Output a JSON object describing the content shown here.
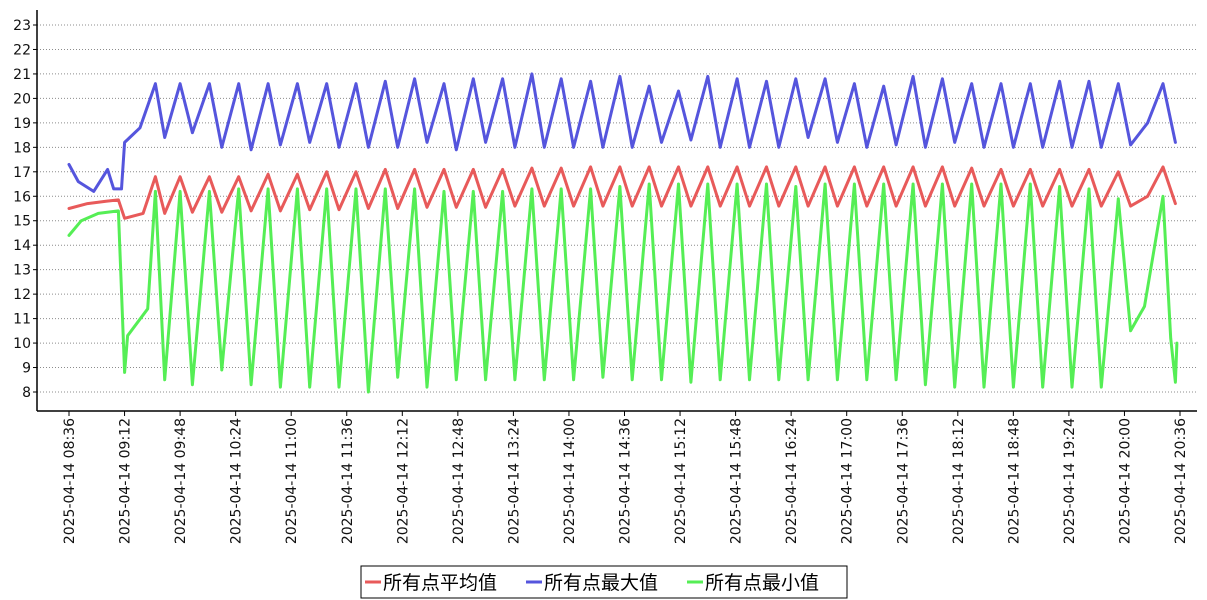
{
  "chart_data": {
    "type": "line",
    "title": "",
    "xlabel": "",
    "ylabel": "",
    "ylim": [
      7.2,
      23.6
    ],
    "yticks": [
      8,
      9,
      10,
      11,
      12,
      13,
      14,
      15,
      16,
      17,
      18,
      19,
      20,
      21,
      22,
      23
    ],
    "grid": "horizontal-dotted",
    "legend_position": "bottom-center",
    "x_tick_labels": [
      "2025-04-14 08:36",
      "2025-04-14 09:12",
      "2025-04-14 09:48",
      "2025-04-14 10:24",
      "2025-04-14 11:00",
      "2025-04-14 11:36",
      "2025-04-14 12:12",
      "2025-04-14 12:48",
      "2025-04-14 13:24",
      "2025-04-14 14:00",
      "2025-04-14 14:36",
      "2025-04-14 15:12",
      "2025-04-14 15:48",
      "2025-04-14 16:24",
      "2025-04-14 17:00",
      "2025-04-14 17:36",
      "2025-04-14 18:12",
      "2025-04-14 18:48",
      "2025-04-14 19:24",
      "2025-04-14 20:00",
      "2025-04-14 20:36"
    ],
    "x_range": [
      "2025-04-14 08:36",
      "2025-04-14 20:36"
    ],
    "series": [
      {
        "name": "所有点平均值",
        "color": "#e85a5a",
        "points": [
          [
            "2025-04-14 08:36",
            15.5
          ],
          [
            "2025-04-14 08:48",
            15.7
          ],
          [
            "2025-04-14 09:00",
            15.8
          ],
          [
            "2025-04-14 09:08",
            15.85
          ],
          [
            "2025-04-14 09:12",
            15.1
          ],
          [
            "2025-04-14 09:24",
            15.3
          ],
          [
            "2025-04-14 09:32",
            16.8
          ],
          [
            "2025-04-14 09:38",
            15.3
          ],
          [
            "2025-04-14 09:48",
            16.8
          ],
          [
            "2025-04-14 09:56",
            15.35
          ],
          [
            "2025-04-14 10:07",
            16.8
          ],
          [
            "2025-04-14 10:15",
            15.35
          ],
          [
            "2025-04-14 10:26",
            16.8
          ],
          [
            "2025-04-14 10:34",
            15.4
          ],
          [
            "2025-04-14 10:45",
            16.9
          ],
          [
            "2025-04-14 10:53",
            15.4
          ],
          [
            "2025-04-14 11:04",
            16.9
          ],
          [
            "2025-04-14 11:12",
            15.45
          ],
          [
            "2025-04-14 11:23",
            17.0
          ],
          [
            "2025-04-14 11:31",
            15.45
          ],
          [
            "2025-04-14 11:42",
            17.0
          ],
          [
            "2025-04-14 11:50",
            15.5
          ],
          [
            "2025-04-14 12:01",
            17.1
          ],
          [
            "2025-04-14 12:09",
            15.5
          ],
          [
            "2025-04-14 12:20",
            17.1
          ],
          [
            "2025-04-14 12:28",
            15.55
          ],
          [
            "2025-04-14 12:39",
            17.1
          ],
          [
            "2025-04-14 12:47",
            15.55
          ],
          [
            "2025-04-14 12:58",
            17.1
          ],
          [
            "2025-04-14 13:06",
            15.55
          ],
          [
            "2025-04-14 13:17",
            17.1
          ],
          [
            "2025-04-14 13:25",
            15.6
          ],
          [
            "2025-04-14 13:36",
            17.15
          ],
          [
            "2025-04-14 13:44",
            15.6
          ],
          [
            "2025-04-14 13:55",
            17.15
          ],
          [
            "2025-04-14 14:03",
            15.6
          ],
          [
            "2025-04-14 14:14",
            17.2
          ],
          [
            "2025-04-14 14:22",
            15.6
          ],
          [
            "2025-04-14 14:33",
            17.2
          ],
          [
            "2025-04-14 14:41",
            15.6
          ],
          [
            "2025-04-14 14:52",
            17.2
          ],
          [
            "2025-04-14 15:00",
            15.6
          ],
          [
            "2025-04-14 15:11",
            17.2
          ],
          [
            "2025-04-14 15:19",
            15.6
          ],
          [
            "2025-04-14 15:30",
            17.2
          ],
          [
            "2025-04-14 15:38",
            15.6
          ],
          [
            "2025-04-14 15:49",
            17.2
          ],
          [
            "2025-04-14 15:57",
            15.6
          ],
          [
            "2025-04-14 16:08",
            17.2
          ],
          [
            "2025-04-14 16:16",
            15.6
          ],
          [
            "2025-04-14 16:27",
            17.2
          ],
          [
            "2025-04-14 16:35",
            15.6
          ],
          [
            "2025-04-14 16:46",
            17.2
          ],
          [
            "2025-04-14 16:54",
            15.6
          ],
          [
            "2025-04-14 17:05",
            17.2
          ],
          [
            "2025-04-14 17:13",
            15.6
          ],
          [
            "2025-04-14 17:24",
            17.2
          ],
          [
            "2025-04-14 17:32",
            15.6
          ],
          [
            "2025-04-14 17:43",
            17.2
          ],
          [
            "2025-04-14 17:51",
            15.6
          ],
          [
            "2025-04-14 18:02",
            17.2
          ],
          [
            "2025-04-14 18:10",
            15.6
          ],
          [
            "2025-04-14 18:21",
            17.15
          ],
          [
            "2025-04-14 18:29",
            15.6
          ],
          [
            "2025-04-14 18:40",
            17.1
          ],
          [
            "2025-04-14 18:48",
            15.6
          ],
          [
            "2025-04-14 18:59",
            17.1
          ],
          [
            "2025-04-14 19:07",
            15.6
          ],
          [
            "2025-04-14 19:18",
            17.1
          ],
          [
            "2025-04-14 19:26",
            15.6
          ],
          [
            "2025-04-14 19:37",
            17.1
          ],
          [
            "2025-04-14 19:45",
            15.6
          ],
          [
            "2025-04-14 19:56",
            17.0
          ],
          [
            "2025-04-14 20:04",
            15.6
          ],
          [
            "2025-04-14 20:15",
            16.0
          ],
          [
            "2025-04-14 20:25",
            17.2
          ],
          [
            "2025-04-14 20:33",
            15.7
          ]
        ]
      },
      {
        "name": "所有点最大值",
        "color": "#5555dd",
        "points": [
          [
            "2025-04-14 08:36",
            17.3
          ],
          [
            "2025-04-14 08:42",
            16.6
          ],
          [
            "2025-04-14 08:52",
            16.2
          ],
          [
            "2025-04-14 09:01",
            17.1
          ],
          [
            "2025-04-14 09:05",
            16.3
          ],
          [
            "2025-04-14 09:10",
            16.3
          ],
          [
            "2025-04-14 09:12",
            18.2
          ],
          [
            "2025-04-14 09:22",
            18.8
          ],
          [
            "2025-04-14 09:32",
            20.6
          ],
          [
            "2025-04-14 09:38",
            18.4
          ],
          [
            "2025-04-14 09:48",
            20.6
          ],
          [
            "2025-04-14 09:56",
            18.6
          ],
          [
            "2025-04-14 10:07",
            20.6
          ],
          [
            "2025-04-14 10:15",
            18.0
          ],
          [
            "2025-04-14 10:26",
            20.6
          ],
          [
            "2025-04-14 10:34",
            17.9
          ],
          [
            "2025-04-14 10:45",
            20.6
          ],
          [
            "2025-04-14 10:53",
            18.1
          ],
          [
            "2025-04-14 11:04",
            20.6
          ],
          [
            "2025-04-14 11:12",
            18.2
          ],
          [
            "2025-04-14 11:23",
            20.6
          ],
          [
            "2025-04-14 11:31",
            18.0
          ],
          [
            "2025-04-14 11:42",
            20.6
          ],
          [
            "2025-04-14 11:50",
            18.0
          ],
          [
            "2025-04-14 12:01",
            20.7
          ],
          [
            "2025-04-14 12:09",
            18.0
          ],
          [
            "2025-04-14 12:20",
            20.8
          ],
          [
            "2025-04-14 12:28",
            18.2
          ],
          [
            "2025-04-14 12:39",
            20.6
          ],
          [
            "2025-04-14 12:47",
            17.9
          ],
          [
            "2025-04-14 12:58",
            20.8
          ],
          [
            "2025-04-14 13:06",
            18.2
          ],
          [
            "2025-04-14 13:17",
            20.8
          ],
          [
            "2025-04-14 13:25",
            18.0
          ],
          [
            "2025-04-14 13:36",
            21.0
          ],
          [
            "2025-04-14 13:44",
            18.0
          ],
          [
            "2025-04-14 13:55",
            20.8
          ],
          [
            "2025-04-14 14:03",
            18.0
          ],
          [
            "2025-04-14 14:14",
            20.7
          ],
          [
            "2025-04-14 14:22",
            18.0
          ],
          [
            "2025-04-14 14:33",
            20.9
          ],
          [
            "2025-04-14 14:41",
            18.0
          ],
          [
            "2025-04-14 14:52",
            20.5
          ],
          [
            "2025-04-14 15:00",
            18.2
          ],
          [
            "2025-04-14 15:11",
            20.3
          ],
          [
            "2025-04-14 15:19",
            18.3
          ],
          [
            "2025-04-14 15:30",
            20.9
          ],
          [
            "2025-04-14 15:38",
            18.0
          ],
          [
            "2025-04-14 15:49",
            20.8
          ],
          [
            "2025-04-14 15:57",
            18.0
          ],
          [
            "2025-04-14 16:08",
            20.7
          ],
          [
            "2025-04-14 16:16",
            18.0
          ],
          [
            "2025-04-14 16:27",
            20.8
          ],
          [
            "2025-04-14 16:35",
            18.4
          ],
          [
            "2025-04-14 16:46",
            20.8
          ],
          [
            "2025-04-14 16:54",
            18.2
          ],
          [
            "2025-04-14 17:05",
            20.6
          ],
          [
            "2025-04-14 17:13",
            18.0
          ],
          [
            "2025-04-14 17:24",
            20.5
          ],
          [
            "2025-04-14 17:32",
            18.1
          ],
          [
            "2025-04-14 17:43",
            20.9
          ],
          [
            "2025-04-14 17:51",
            18.0
          ],
          [
            "2025-04-14 18:02",
            20.8
          ],
          [
            "2025-04-14 18:10",
            18.2
          ],
          [
            "2025-04-14 18:21",
            20.6
          ],
          [
            "2025-04-14 18:29",
            18.0
          ],
          [
            "2025-04-14 18:40",
            20.6
          ],
          [
            "2025-04-14 18:48",
            18.0
          ],
          [
            "2025-04-14 18:59",
            20.6
          ],
          [
            "2025-04-14 19:07",
            18.0
          ],
          [
            "2025-04-14 19:18",
            20.7
          ],
          [
            "2025-04-14 19:26",
            18.0
          ],
          [
            "2025-04-14 19:37",
            20.7
          ],
          [
            "2025-04-14 19:45",
            18.0
          ],
          [
            "2025-04-14 19:56",
            20.6
          ],
          [
            "2025-04-14 20:04",
            18.1
          ],
          [
            "2025-04-14 20:15",
            19.0
          ],
          [
            "2025-04-14 20:25",
            20.6
          ],
          [
            "2025-04-14 20:33",
            18.2
          ]
        ]
      },
      {
        "name": "所有点最小值",
        "color": "#55ee55",
        "points": [
          [
            "2025-04-14 08:36",
            14.4
          ],
          [
            "2025-04-14 08:44",
            15.0
          ],
          [
            "2025-04-14 08:55",
            15.3
          ],
          [
            "2025-04-14 09:08",
            15.4
          ],
          [
            "2025-04-14 09:12",
            8.8
          ],
          [
            "2025-04-14 09:14",
            10.3
          ],
          [
            "2025-04-14 09:27",
            11.4
          ],
          [
            "2025-04-14 09:32",
            16.2
          ],
          [
            "2025-04-14 09:38",
            8.5
          ],
          [
            "2025-04-14 09:48",
            16.2
          ],
          [
            "2025-04-14 09:56",
            8.3
          ],
          [
            "2025-04-14 10:07",
            16.2
          ],
          [
            "2025-04-14 10:15",
            8.9
          ],
          [
            "2025-04-14 10:26",
            16.3
          ],
          [
            "2025-04-14 10:34",
            8.3
          ],
          [
            "2025-04-14 10:45",
            16.3
          ],
          [
            "2025-04-14 10:53",
            8.2
          ],
          [
            "2025-04-14 11:04",
            16.3
          ],
          [
            "2025-04-14 11:12",
            8.2
          ],
          [
            "2025-04-14 11:23",
            16.3
          ],
          [
            "2025-04-14 11:31",
            8.2
          ],
          [
            "2025-04-14 11:42",
            16.3
          ],
          [
            "2025-04-14 11:50",
            8.0
          ],
          [
            "2025-04-14 12:01",
            16.3
          ],
          [
            "2025-04-14 12:09",
            8.6
          ],
          [
            "2025-04-14 12:20",
            16.3
          ],
          [
            "2025-04-14 12:28",
            8.2
          ],
          [
            "2025-04-14 12:39",
            16.2
          ],
          [
            "2025-04-14 12:47",
            8.5
          ],
          [
            "2025-04-14 12:58",
            16.2
          ],
          [
            "2025-04-14 13:06",
            8.5
          ],
          [
            "2025-04-14 13:17",
            16.2
          ],
          [
            "2025-04-14 13:25",
            8.5
          ],
          [
            "2025-04-14 13:36",
            16.3
          ],
          [
            "2025-04-14 13:44",
            8.5
          ],
          [
            "2025-04-14 13:55",
            16.3
          ],
          [
            "2025-04-14 14:03",
            8.5
          ],
          [
            "2025-04-14 14:14",
            16.3
          ],
          [
            "2025-04-14 14:22",
            8.6
          ],
          [
            "2025-04-14 14:33",
            16.4
          ],
          [
            "2025-04-14 14:41",
            8.5
          ],
          [
            "2025-04-14 14:52",
            16.5
          ],
          [
            "2025-04-14 15:00",
            8.5
          ],
          [
            "2025-04-14 15:11",
            16.5
          ],
          [
            "2025-04-14 15:19",
            8.4
          ],
          [
            "2025-04-14 15:30",
            16.5
          ],
          [
            "2025-04-14 15:38",
            8.5
          ],
          [
            "2025-04-14 15:49",
            16.5
          ],
          [
            "2025-04-14 15:57",
            8.5
          ],
          [
            "2025-04-14 16:08",
            16.5
          ],
          [
            "2025-04-14 16:16",
            8.5
          ],
          [
            "2025-04-14 16:27",
            16.4
          ],
          [
            "2025-04-14 16:35",
            8.5
          ],
          [
            "2025-04-14 16:46",
            16.5
          ],
          [
            "2025-04-14 16:54",
            8.5
          ],
          [
            "2025-04-14 17:05",
            16.5
          ],
          [
            "2025-04-14 17:13",
            8.5
          ],
          [
            "2025-04-14 17:24",
            16.5
          ],
          [
            "2025-04-14 17:32",
            8.5
          ],
          [
            "2025-04-14 17:43",
            16.5
          ],
          [
            "2025-04-14 17:51",
            8.3
          ],
          [
            "2025-04-14 18:02",
            16.5
          ],
          [
            "2025-04-14 18:10",
            8.2
          ],
          [
            "2025-04-14 18:21",
            16.5
          ],
          [
            "2025-04-14 18:29",
            8.2
          ],
          [
            "2025-04-14 18:40",
            16.5
          ],
          [
            "2025-04-14 18:48",
            8.2
          ],
          [
            "2025-04-14 18:59",
            16.5
          ],
          [
            "2025-04-14 19:07",
            8.2
          ],
          [
            "2025-04-14 19:18",
            16.4
          ],
          [
            "2025-04-14 19:26",
            8.2
          ],
          [
            "2025-04-14 19:37",
            16.3
          ],
          [
            "2025-04-14 19:45",
            8.2
          ],
          [
            "2025-04-14 19:56",
            15.9
          ],
          [
            "2025-04-14 20:04",
            10.5
          ],
          [
            "2025-04-14 20:13",
            11.5
          ],
          [
            "2025-04-14 20:25",
            16.0
          ],
          [
            "2025-04-14 20:30",
            10.2
          ],
          [
            "2025-04-14 20:33",
            8.4
          ],
          [
            "2025-04-14 20:34",
            10.0
          ]
        ]
      }
    ]
  }
}
